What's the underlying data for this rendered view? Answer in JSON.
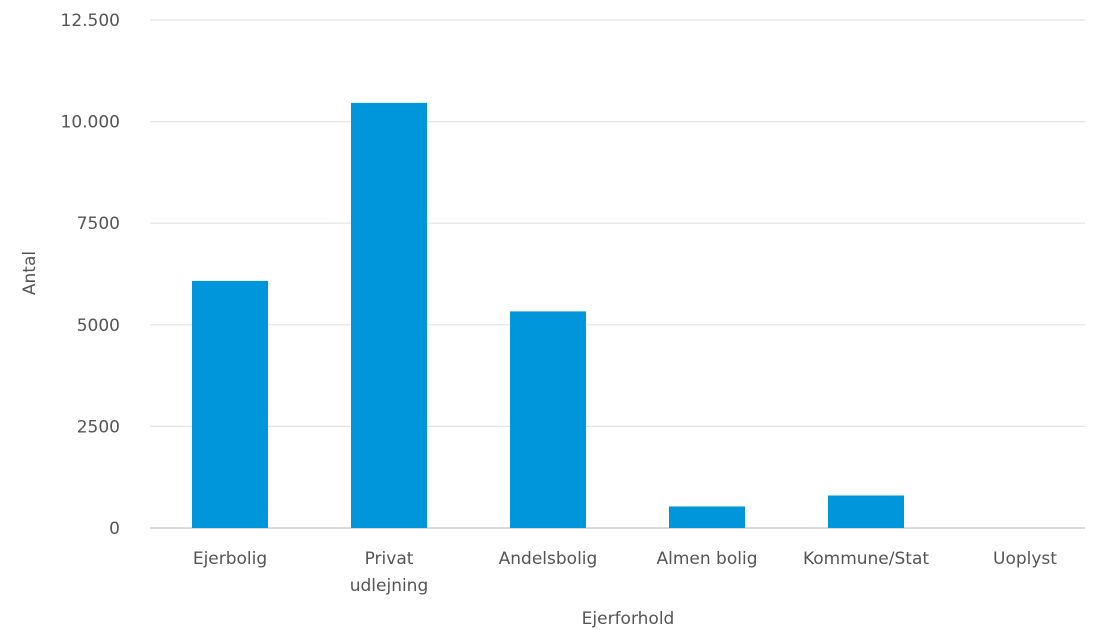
{
  "chart_data": {
    "type": "bar",
    "xlabel": "Ejerforhold",
    "ylabel": "Antal",
    "ylim": [
      0,
      12500
    ],
    "yticks": [
      {
        "value": 0,
        "label": "0"
      },
      {
        "value": 2500,
        "label": "2500"
      },
      {
        "value": 5000,
        "label": "5000"
      },
      {
        "value": 7500,
        "label": "7500"
      },
      {
        "value": 10000,
        "label": "10.000"
      },
      {
        "value": 12500,
        "label": "12.500"
      }
    ],
    "categories": [
      [
        "Ejerbolig"
      ],
      [
        "Privat",
        "udlejning"
      ],
      [
        "Andelsbolig"
      ],
      [
        "Almen bolig"
      ],
      [
        "Kommune/Stat"
      ],
      [
        "Uoplyst"
      ]
    ],
    "values": [
      6080,
      10460,
      5330,
      530,
      800,
      0
    ],
    "grid": true,
    "bar_color": "#0096db"
  }
}
